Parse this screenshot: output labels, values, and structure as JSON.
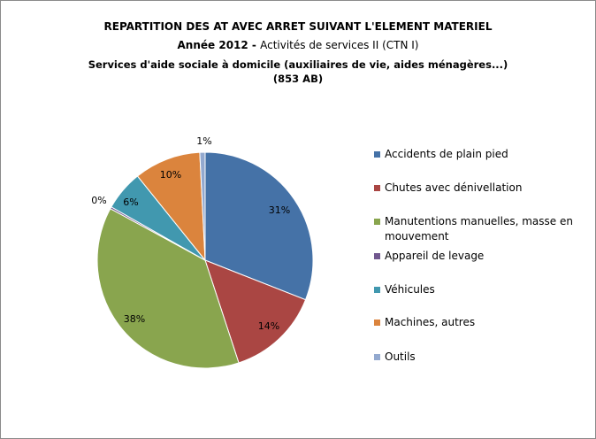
{
  "chart_data": {
    "type": "pie",
    "title": "REPARTITION DES AT AVEC ARRET SUIVANT L'ELEMENT MATERIEL",
    "subtitle_year": "Année 2012",
    "subtitle_sep": " - ",
    "subtitle_sector": "Activités de services II (CTN I)",
    "subtitle_line3": "Services d'aide sociale à domicile (auxiliaires de vie, aides ménagères...)",
    "subtitle_line4": "(853 AB)",
    "legend_position": "right",
    "slices": [
      {
        "name": "Accidents de plain pied",
        "value": 31,
        "label": "31%",
        "color": "#4572A7"
      },
      {
        "name": "Chutes avec dénivellation",
        "value": 14,
        "label": "14%",
        "color": "#AA4643"
      },
      {
        "name": "Manutentions manuelles, masse en mouvement",
        "value": 38,
        "label": "38%",
        "color": "#89A54E"
      },
      {
        "name": "Appareil de levage",
        "value": 0.3,
        "label": "0%",
        "color": "#71588F"
      },
      {
        "name": "Véhicules",
        "value": 6,
        "label": "6%",
        "color": "#4198AF"
      },
      {
        "name": "Machines, autres",
        "value": 10,
        "label": "10%",
        "color": "#DB843D"
      },
      {
        "name": "Outils",
        "value": 0.8,
        "label": "1%",
        "color": "#93A9CF"
      }
    ]
  }
}
